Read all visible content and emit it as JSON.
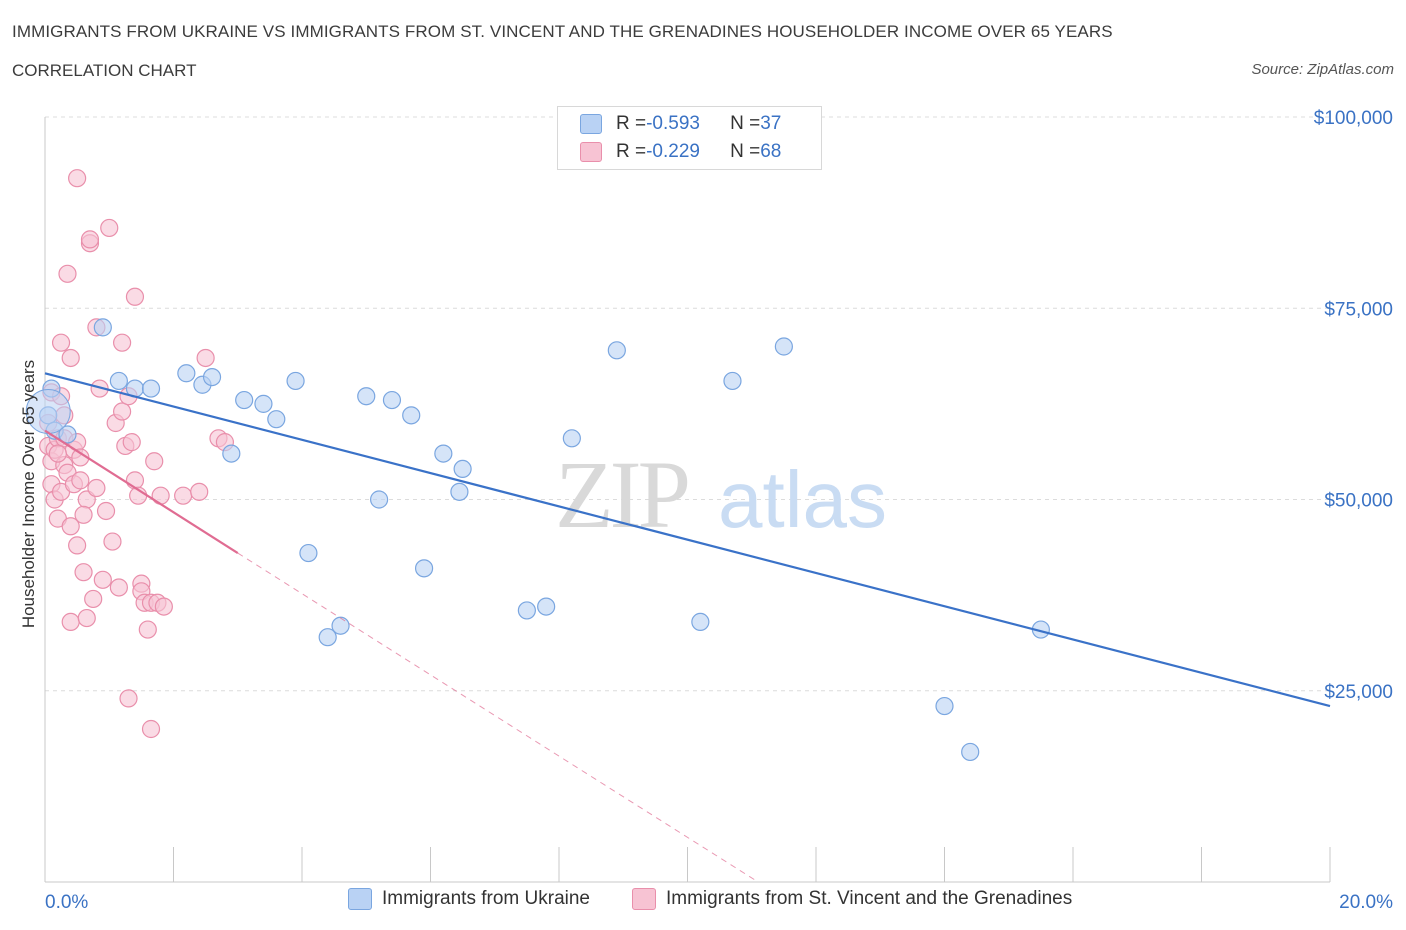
{
  "header": {
    "title": "IMMIGRANTS FROM UKRAINE VS IMMIGRANTS FROM ST. VINCENT AND THE GRENADINES HOUSEHOLDER INCOME OVER 65 YEARS",
    "subtitle": "CORRELATION CHART",
    "source": "Source: ZipAtlas.com"
  },
  "legend": {
    "ukraine": {
      "r_label": "R = ",
      "r_value": "-0.593",
      "n_label": "N = ",
      "n_value": "37"
    },
    "stvincent": {
      "r_label": "R = ",
      "r_value": "-0.229",
      "n_label": "N = ",
      "n_value": "68"
    }
  },
  "colors": {
    "ukraine_fill": "#b9d2f4",
    "ukraine_stroke": "#7aa6e0",
    "ukraine_line": "#3a72c8",
    "stvincent_fill": "#f7c3d3",
    "stvincent_stroke": "#e98fab",
    "stvincent_line": "#e06c92",
    "axis_text": "#3a72c4",
    "grid": "#dcdcdc"
  },
  "chart_data": {
    "type": "scatter",
    "title": "IMMIGRANTS FROM UKRAINE VS IMMIGRANTS FROM ST. VINCENT AND THE GRENADINES HOUSEHOLDER INCOME OVER 65 YEARS",
    "xlabel": "",
    "ylabel": "Householder Income Over 65 years",
    "xlim": [
      0,
      20
    ],
    "ylim": [
      0,
      100000
    ],
    "x_tick_labels": [
      "0.0%",
      "20.0%"
    ],
    "y_ticks": [
      25000,
      50000,
      75000,
      100000
    ],
    "y_tick_labels": [
      "$25,000",
      "$50,000",
      "$75,000",
      "$100,000"
    ],
    "watermark": "ZIPatlas",
    "series": [
      {
        "name": "Immigrants from Ukraine",
        "points": [
          [
            0.05,
            61000
          ],
          [
            0.1,
            64500
          ],
          [
            0.15,
            59000
          ],
          [
            0.35,
            58500
          ],
          [
            0.9,
            72500
          ],
          [
            1.15,
            65500
          ],
          [
            1.4,
            64500
          ],
          [
            1.65,
            64500
          ],
          [
            2.2,
            66500
          ],
          [
            2.45,
            65000
          ],
          [
            2.6,
            66000
          ],
          [
            2.9,
            56000
          ],
          [
            3.1,
            63000
          ],
          [
            3.4,
            62500
          ],
          [
            3.6,
            60500
          ],
          [
            3.9,
            65500
          ],
          [
            4.1,
            43000
          ],
          [
            4.4,
            32000
          ],
          [
            4.6,
            33500
          ],
          [
            5.0,
            63500
          ],
          [
            5.2,
            50000
          ],
          [
            5.4,
            63000
          ],
          [
            5.7,
            61000
          ],
          [
            5.9,
            41000
          ],
          [
            6.2,
            56000
          ],
          [
            6.45,
            51000
          ],
          [
            6.5,
            54000
          ],
          [
            7.5,
            35500
          ],
          [
            7.8,
            36000
          ],
          [
            8.2,
            58000
          ],
          [
            8.9,
            69500
          ],
          [
            10.2,
            34000
          ],
          [
            10.7,
            65500
          ],
          [
            11.5,
            70000
          ],
          [
            14.0,
            23000
          ],
          [
            14.4,
            17000
          ],
          [
            15.5,
            33000
          ]
        ]
      },
      {
        "name": "Immigrants from St. Vincent and the Grenadines",
        "points": [
          [
            0.05,
            57000
          ],
          [
            0.05,
            60000
          ],
          [
            0.1,
            52000
          ],
          [
            0.1,
            64000
          ],
          [
            0.1,
            55000
          ],
          [
            0.15,
            56500
          ],
          [
            0.15,
            50000
          ],
          [
            0.2,
            58000
          ],
          [
            0.2,
            47500
          ],
          [
            0.25,
            51000
          ],
          [
            0.25,
            63500
          ],
          [
            0.25,
            70500
          ],
          [
            0.3,
            58000
          ],
          [
            0.3,
            54500
          ],
          [
            0.35,
            53500
          ],
          [
            0.35,
            79500
          ],
          [
            0.4,
            68500
          ],
          [
            0.4,
            46500
          ],
          [
            0.4,
            34000
          ],
          [
            0.45,
            52000
          ],
          [
            0.45,
            56500
          ],
          [
            0.5,
            92000
          ],
          [
            0.5,
            57500
          ],
          [
            0.5,
            44000
          ],
          [
            0.55,
            52500
          ],
          [
            0.55,
            55500
          ],
          [
            0.6,
            40500
          ],
          [
            0.65,
            34500
          ],
          [
            0.65,
            50000
          ],
          [
            0.7,
            83500
          ],
          [
            0.7,
            84000
          ],
          [
            0.75,
            37000
          ],
          [
            0.8,
            72500
          ],
          [
            0.8,
            51500
          ],
          [
            0.85,
            64500
          ],
          [
            0.9,
            39500
          ],
          [
            0.95,
            48500
          ],
          [
            1.0,
            85500
          ],
          [
            1.05,
            44500
          ],
          [
            1.1,
            60000
          ],
          [
            1.15,
            38500
          ],
          [
            1.2,
            61500
          ],
          [
            1.2,
            70500
          ],
          [
            1.25,
            57000
          ],
          [
            1.3,
            63500
          ],
          [
            1.3,
            24000
          ],
          [
            1.35,
            57500
          ],
          [
            1.4,
            76500
          ],
          [
            1.4,
            52500
          ],
          [
            1.45,
            50500
          ],
          [
            1.5,
            39000
          ],
          [
            1.5,
            38000
          ],
          [
            1.55,
            36500
          ],
          [
            1.6,
            33000
          ],
          [
            1.65,
            36500
          ],
          [
            1.65,
            20000
          ],
          [
            1.7,
            55000
          ],
          [
            1.75,
            36500
          ],
          [
            1.8,
            50500
          ],
          [
            1.85,
            36000
          ],
          [
            2.15,
            50500
          ],
          [
            2.4,
            51000
          ],
          [
            2.5,
            68500
          ],
          [
            2.7,
            58000
          ],
          [
            2.8,
            57500
          ],
          [
            0.2,
            56000
          ],
          [
            0.3,
            61000
          ],
          [
            0.6,
            48000
          ]
        ]
      }
    ],
    "trendlines": [
      {
        "series": "Immigrants from Ukraine",
        "x": [
          0,
          20
        ],
        "y": [
          66500,
          23000
        ],
        "style": "solid"
      },
      {
        "series": "Immigrants from St. Vincent and the Grenadines",
        "x": [
          0,
          3.0
        ],
        "y": [
          59000,
          43000
        ],
        "style": "solid"
      },
      {
        "series": "Immigrants from St. Vincent and the Grenadines",
        "x": [
          3.0,
          11.1
        ],
        "y": [
          43000,
          0
        ],
        "style": "dashed"
      }
    ]
  },
  "bottom_legend": {
    "ukraine_label": "Immigrants from Ukraine",
    "stvincent_label": "Immigrants from St. Vincent and the Grenadines"
  }
}
